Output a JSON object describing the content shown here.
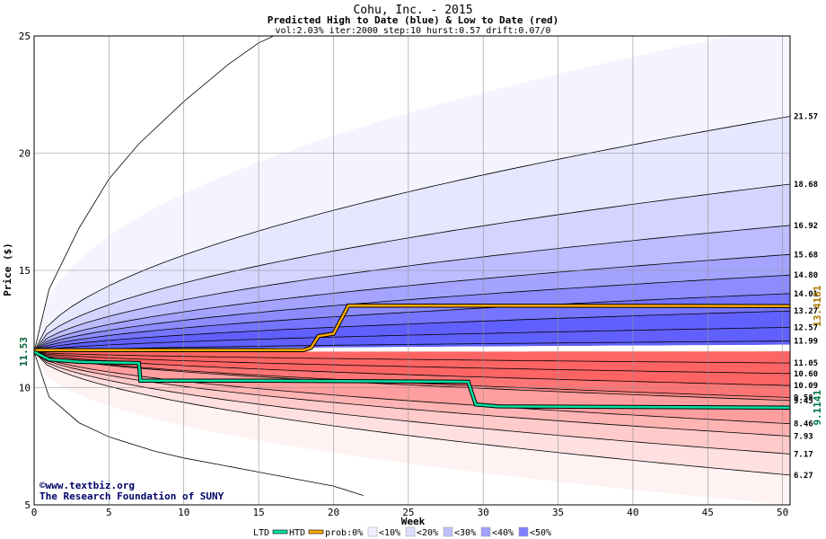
{
  "chart_data": {
    "type": "line",
    "title": "Cohu, Inc. - 2015",
    "subtitle": "Predicted High to Date (blue) &  Low to Date (red)",
    "params": "vol:2.03% iter:2000 step:10 hurst:0.57 drift:0.07/0",
    "xlabel": "Week",
    "ylabel": "Price ($)",
    "xlim": [
      0,
      50.5
    ],
    "ylim": [
      5,
      25
    ],
    "x_ticks": [
      0,
      5,
      10,
      15,
      20,
      25,
      30,
      35,
      40,
      45,
      50
    ],
    "y_ticks": [
      5,
      10,
      15,
      20,
      25
    ],
    "grid": true,
    "start_price_label": "11.53",
    "start_price": 11.53,
    "upper_band_labels": [
      "21.57",
      "18.68",
      "16.92",
      "15.68",
      "14.80",
      "14.01",
      "13.27",
      "12.57",
      "11.99"
    ],
    "upper_band_values": [
      21.57,
      18.68,
      16.92,
      15.68,
      14.8,
      14.01,
      13.27,
      12.57,
      11.99
    ],
    "lower_band_labels": [
      "11.05",
      "10.60",
      "10.09",
      "9.58",
      "9.45",
      "8.46",
      "7.93",
      "7.17",
      "6.27"
    ],
    "lower_band_values": [
      11.05,
      10.6,
      10.09,
      9.58,
      9.45,
      8.46,
      7.93,
      7.17,
      6.27
    ],
    "outer_high_at_week": [
      [
        0,
        11.53
      ],
      [
        1,
        14.2
      ],
      [
        3,
        16.8
      ],
      [
        5,
        18.9
      ],
      [
        7,
        20.4
      ],
      [
        10,
        22.2
      ],
      [
        13,
        23.8
      ],
      [
        15,
        24.7
      ],
      [
        16,
        25.0
      ]
    ],
    "outer_low_at_week": [
      [
        0,
        11.53
      ],
      [
        1,
        9.6
      ],
      [
        3,
        8.5
      ],
      [
        5,
        7.9
      ],
      [
        8,
        7.3
      ],
      [
        10,
        7.0
      ],
      [
        15,
        6.4
      ],
      [
        20,
        5.8
      ],
      [
        22,
        5.4
      ]
    ],
    "series": [
      {
        "name": "HTD",
        "color": "#ffaa00",
        "values": [
          [
            0,
            11.6
          ],
          [
            18,
            11.6
          ],
          [
            18.5,
            11.7
          ],
          [
            19,
            12.2
          ],
          [
            20,
            12.3
          ],
          [
            20.5,
            12.9
          ],
          [
            21,
            13.5
          ],
          [
            50.5,
            13.48
          ]
        ],
        "end_label": "13.4181"
      },
      {
        "name": "LTD",
        "color": "#00e0a0",
        "values": [
          [
            0,
            11.53
          ],
          [
            1,
            11.2
          ],
          [
            3,
            11.1
          ],
          [
            7,
            11.05
          ],
          [
            7.1,
            10.3
          ],
          [
            15,
            10.3
          ],
          [
            29,
            10.25
          ],
          [
            29.5,
            9.28
          ],
          [
            31,
            9.2
          ],
          [
            50.5,
            9.15
          ]
        ],
        "end_label": "9.1141"
      }
    ],
    "legend": {
      "placement": "bottom",
      "items": [
        "LTD",
        "HTD",
        "prob:0%",
        "<10%",
        "<20%",
        "<30%",
        "<40%",
        "<50%"
      ],
      "swatch_colors": [
        "#00e0a0",
        "#ffaa00",
        "#ffffff",
        "#f0f0ff",
        "#dcdcff",
        "#c0c0ff",
        "#a0a0ff",
        "#8080ff"
      ]
    },
    "colors": {
      "blue_bands": [
        "#f4f4ff",
        "#e6e6ff",
        "#d4d4ff",
        "#bcbcff",
        "#a4a4ff",
        "#8c8cff",
        "#7575ff",
        "#6060ff"
      ],
      "red_bands": [
        "#fff2f2",
        "#ffe0e0",
        "#ffcaca",
        "#ffb4b4",
        "#ff9e9e",
        "#ff8888",
        "#ff7575",
        "#ff6464"
      ],
      "end_label_green": "#007744",
      "end_label_gold": "#aa7700",
      "start_label_green": "#006633"
    }
  },
  "watermark": {
    "line1": "©www.textbiz.org",
    "line2": "The Research Foundation of SUNY"
  }
}
